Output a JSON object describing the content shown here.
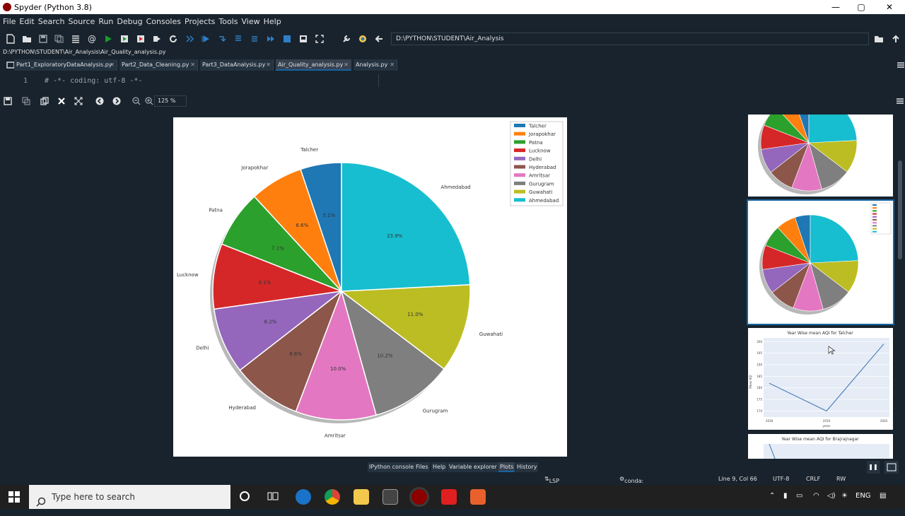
{
  "window": {
    "title": "Spyder (Python 3.8)",
    "controls": [
      "—",
      "▢",
      "✕"
    ]
  },
  "menu": [
    "File",
    "Edit",
    "Search",
    "Source",
    "Run",
    "Debug",
    "Consoles",
    "Projects",
    "Tools",
    "View",
    "Help"
  ],
  "toolbar": {
    "path": "D:\\PYTHON\\STUDENT\\Air_Analysis"
  },
  "editor": {
    "file_path": "D:\\PYTHON\\STUDENT\\Air_Analysis\\Air_Quality_analysis.py",
    "tabs": [
      "Part1_ExploratoryDataAnalysis.py",
      "Part2_Data_Cleaning.py",
      "Part3_DataAnalysis.py",
      "Air_Quality_analysis.py",
      "Analysis.py"
    ],
    "active_tab": 3,
    "line_number": "1",
    "line_text": "# -*- coding: utf-8 -*-"
  },
  "plots": {
    "zoom": "125 %"
  },
  "chart_data": {
    "type": "pie",
    "labels": [
      "Talcher",
      "Jorapokhar",
      "Patna",
      "Lucknow",
      "Delhi",
      "Hyderabad",
      "Amritsar",
      "Gurugram",
      "Guwahati",
      "Ahmedabad"
    ],
    "values": [
      5.1,
      6.6,
      7.1,
      8.1,
      8.2,
      8.6,
      10.0,
      10.2,
      11.0,
      23.9
    ],
    "pct_labels": [
      "5.1%",
      "6.6%",
      "7.1%",
      "8.1%",
      "8.2%",
      "8.6%",
      "10.0%",
      "10.2%",
      "11.0%",
      "23.9%"
    ],
    "colors": [
      "#1f77b4",
      "#ff7f0e",
      "#2ca02c",
      "#d62728",
      "#9467bd",
      "#8c564b",
      "#e377c2",
      "#7f7f7f",
      "#bcbd22",
      "#17becf"
    ],
    "legend_position": "top-right"
  },
  "thumbnails": {
    "line_title": "Year Wise mean AQI for Talcher",
    "line_xlabel": "years",
    "line_ylabel": "Mean AQI",
    "line_xticks": [
      "2018",
      "2019",
      "2020"
    ],
    "line_values": [
      182,
      170,
      199
    ],
    "line_yticks": [
      "170",
      "175",
      "180",
      "185",
      "190",
      "195",
      "200"
    ],
    "next_title": "Year Wise mean AQI for Brajrajnagar"
  },
  "pane_tabs": [
    "IPython console",
    "Files",
    "Help",
    "Variable explorer",
    "Plots",
    "History"
  ],
  "active_pane_tab": 4,
  "status": {
    "lsp": "LSP Python: ready",
    "conda": "conda: base (Python 3.8.5)",
    "cursor": "Line 9, Col 66",
    "encoding": "UTF-8",
    "eol": "CRLF",
    "mode": "RW"
  },
  "taskbar": {
    "search_placeholder": "Type here to search",
    "lang": "ENG"
  }
}
